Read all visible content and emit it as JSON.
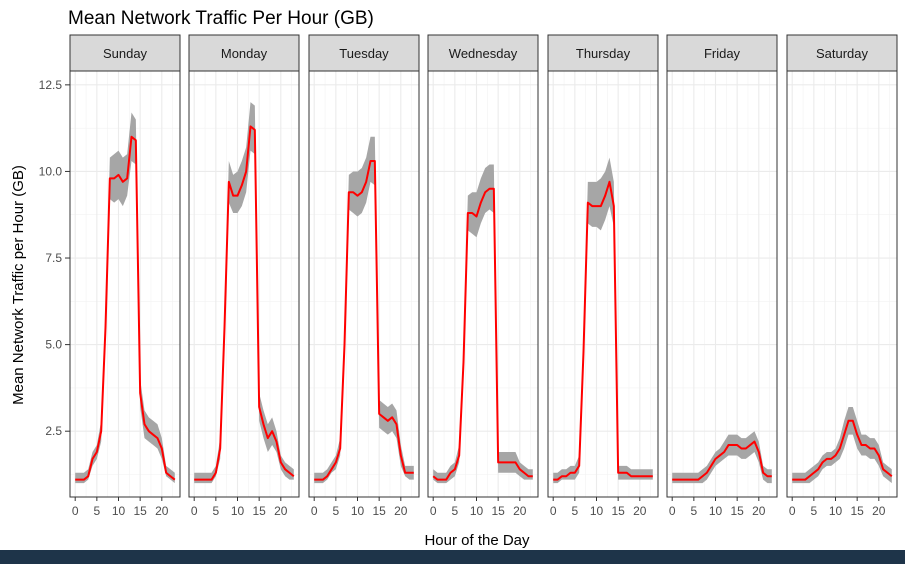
{
  "chart_data": {
    "type": "line",
    "title": "Mean Network Traffic Per Hour (GB)",
    "xlabel": "Hour of the Day",
    "ylabel": "Mean Network Traffic per Hour (GB)",
    "xlim": [
      -1.2,
      24.2
    ],
    "ylim": [
      0.6,
      12.9
    ],
    "x_ticks": [
      0,
      5,
      10,
      15,
      20
    ],
    "y_ticks": [
      2.5,
      5.0,
      7.5,
      10.0,
      12.5
    ],
    "y_tick_labels": [
      "2.5",
      "5.0",
      "7.5",
      "10.0",
      "12.5"
    ],
    "grid": true,
    "line_color": "#ff0000",
    "band_color": "#a6a6a6",
    "strip_fill": "#d9d9d9",
    "hours": [
      0,
      1,
      2,
      3,
      4,
      5,
      6,
      7,
      8,
      9,
      10,
      11,
      12,
      13,
      14,
      15,
      16,
      17,
      18,
      19,
      20,
      21,
      22,
      23
    ],
    "panels": [
      {
        "name": "Sunday",
        "mean": [
          1.1,
          1.1,
          1.1,
          1.2,
          1.7,
          1.9,
          2.5,
          5.5,
          9.8,
          9.8,
          9.9,
          9.7,
          9.8,
          11.0,
          10.9,
          3.6,
          2.7,
          2.5,
          2.4,
          2.3,
          2.0,
          1.3,
          1.2,
          1.1
        ],
        "lower": [
          1.0,
          1.0,
          1.0,
          1.1,
          1.5,
          1.7,
          2.2,
          5.1,
          9.2,
          9.1,
          9.2,
          9.0,
          9.3,
          10.3,
          10.2,
          3.2,
          2.3,
          2.2,
          2.1,
          2.0,
          1.7,
          1.2,
          1.1,
          1.0
        ],
        "upper": [
          1.3,
          1.3,
          1.3,
          1.4,
          1.9,
          2.1,
          2.8,
          5.9,
          10.4,
          10.5,
          10.6,
          10.4,
          10.5,
          11.7,
          11.5,
          4.0,
          3.1,
          2.9,
          2.8,
          2.7,
          2.3,
          1.5,
          1.4,
          1.3
        ]
      },
      {
        "name": "Monday",
        "mean": [
          1.1,
          1.1,
          1.1,
          1.1,
          1.1,
          1.3,
          2.0,
          5.5,
          9.7,
          9.3,
          9.3,
          9.6,
          10.0,
          11.3,
          11.2,
          3.2,
          2.7,
          2.3,
          2.5,
          2.2,
          1.6,
          1.4,
          1.3,
          1.2
        ],
        "lower": [
          1.0,
          1.0,
          1.0,
          1.0,
          1.0,
          1.2,
          1.7,
          5.0,
          9.1,
          8.8,
          8.8,
          9.0,
          9.4,
          10.6,
          10.5,
          2.8,
          2.3,
          1.9,
          2.1,
          1.9,
          1.4,
          1.2,
          1.1,
          1.1
        ],
        "upper": [
          1.3,
          1.3,
          1.3,
          1.3,
          1.3,
          1.5,
          2.3,
          6.0,
          10.3,
          9.9,
          10.0,
          10.3,
          10.7,
          12.0,
          11.9,
          3.6,
          3.1,
          2.7,
          2.9,
          2.5,
          1.8,
          1.6,
          1.5,
          1.4
        ]
      },
      {
        "name": "Tuesday",
        "mean": [
          1.1,
          1.1,
          1.1,
          1.2,
          1.4,
          1.6,
          2.0,
          5.0,
          9.4,
          9.4,
          9.3,
          9.4,
          9.7,
          10.3,
          10.3,
          3.0,
          2.9,
          2.8,
          2.9,
          2.7,
          1.8,
          1.3,
          1.3,
          1.3
        ],
        "lower": [
          1.0,
          1.0,
          1.0,
          1.1,
          1.3,
          1.4,
          1.8,
          4.6,
          8.9,
          8.8,
          8.7,
          8.8,
          9.1,
          9.7,
          9.6,
          2.6,
          2.5,
          2.4,
          2.5,
          2.3,
          1.5,
          1.2,
          1.1,
          1.1
        ],
        "upper": [
          1.3,
          1.3,
          1.3,
          1.4,
          1.6,
          1.8,
          2.3,
          5.4,
          9.9,
          10.0,
          10.0,
          10.1,
          10.4,
          11.0,
          11.0,
          3.4,
          3.3,
          3.2,
          3.3,
          3.1,
          2.1,
          1.5,
          1.5,
          1.5
        ]
      },
      {
        "name": "Wednesday",
        "mean": [
          1.2,
          1.1,
          1.1,
          1.1,
          1.3,
          1.4,
          1.8,
          4.5,
          8.8,
          8.8,
          8.7,
          9.1,
          9.4,
          9.5,
          9.5,
          1.6,
          1.6,
          1.6,
          1.6,
          1.6,
          1.4,
          1.3,
          1.2,
          1.2
        ],
        "lower": [
          1.1,
          1.0,
          1.0,
          1.0,
          1.1,
          1.2,
          1.6,
          4.1,
          8.3,
          8.2,
          8.1,
          8.5,
          8.8,
          8.9,
          8.8,
          1.3,
          1.3,
          1.3,
          1.3,
          1.3,
          1.2,
          1.1,
          1.1,
          1.1
        ],
        "upper": [
          1.4,
          1.3,
          1.3,
          1.3,
          1.5,
          1.6,
          2.1,
          4.9,
          9.3,
          9.4,
          9.4,
          9.8,
          10.1,
          10.2,
          10.2,
          1.9,
          1.9,
          1.9,
          1.9,
          1.9,
          1.6,
          1.5,
          1.4,
          1.4
        ]
      },
      {
        "name": "Thursday",
        "mean": [
          1.1,
          1.1,
          1.2,
          1.2,
          1.3,
          1.3,
          1.5,
          4.8,
          9.1,
          9.0,
          9.0,
          9.0,
          9.3,
          9.7,
          9.0,
          1.3,
          1.3,
          1.3,
          1.2,
          1.2,
          1.2,
          1.2,
          1.2,
          1.2
        ],
        "lower": [
          1.0,
          1.0,
          1.1,
          1.1,
          1.1,
          1.1,
          1.3,
          4.4,
          8.5,
          8.4,
          8.4,
          8.3,
          8.6,
          9.0,
          8.4,
          1.1,
          1.1,
          1.1,
          1.1,
          1.1,
          1.1,
          1.1,
          1.1,
          1.1
        ],
        "upper": [
          1.3,
          1.3,
          1.4,
          1.4,
          1.5,
          1.5,
          1.8,
          5.2,
          9.7,
          9.7,
          9.7,
          9.8,
          10.0,
          10.4,
          9.7,
          1.5,
          1.5,
          1.5,
          1.4,
          1.4,
          1.4,
          1.4,
          1.4,
          1.4
        ]
      },
      {
        "name": "Friday",
        "mean": [
          1.1,
          1.1,
          1.1,
          1.1,
          1.1,
          1.1,
          1.1,
          1.2,
          1.3,
          1.5,
          1.7,
          1.8,
          1.9,
          2.1,
          2.1,
          2.1,
          2.0,
          2.0,
          2.1,
          2.2,
          1.9,
          1.3,
          1.2,
          1.2
        ],
        "lower": [
          1.0,
          1.0,
          1.0,
          1.0,
          1.0,
          1.0,
          1.0,
          1.0,
          1.1,
          1.3,
          1.5,
          1.6,
          1.7,
          1.8,
          1.8,
          1.8,
          1.7,
          1.7,
          1.8,
          1.9,
          1.6,
          1.1,
          1.0,
          1.0
        ],
        "upper": [
          1.3,
          1.3,
          1.3,
          1.3,
          1.3,
          1.3,
          1.3,
          1.4,
          1.5,
          1.7,
          1.9,
          2.0,
          2.2,
          2.4,
          2.4,
          2.4,
          2.3,
          2.3,
          2.4,
          2.5,
          2.2,
          1.5,
          1.4,
          1.4
        ]
      },
      {
        "name": "Saturday",
        "mean": [
          1.1,
          1.1,
          1.1,
          1.1,
          1.2,
          1.3,
          1.4,
          1.6,
          1.7,
          1.7,
          1.8,
          2.0,
          2.4,
          2.8,
          2.8,
          2.4,
          2.1,
          2.1,
          2.0,
          2.0,
          1.8,
          1.4,
          1.3,
          1.2
        ],
        "lower": [
          1.0,
          1.0,
          1.0,
          1.0,
          1.0,
          1.1,
          1.2,
          1.4,
          1.5,
          1.5,
          1.6,
          1.7,
          2.0,
          2.4,
          2.4,
          2.0,
          1.8,
          1.8,
          1.7,
          1.7,
          1.5,
          1.2,
          1.1,
          1.0
        ],
        "upper": [
          1.3,
          1.3,
          1.3,
          1.3,
          1.4,
          1.5,
          1.6,
          1.8,
          1.9,
          1.9,
          2.0,
          2.3,
          2.8,
          3.2,
          3.2,
          2.8,
          2.4,
          2.4,
          2.3,
          2.3,
          2.1,
          1.6,
          1.5,
          1.4
        ]
      }
    ]
  }
}
